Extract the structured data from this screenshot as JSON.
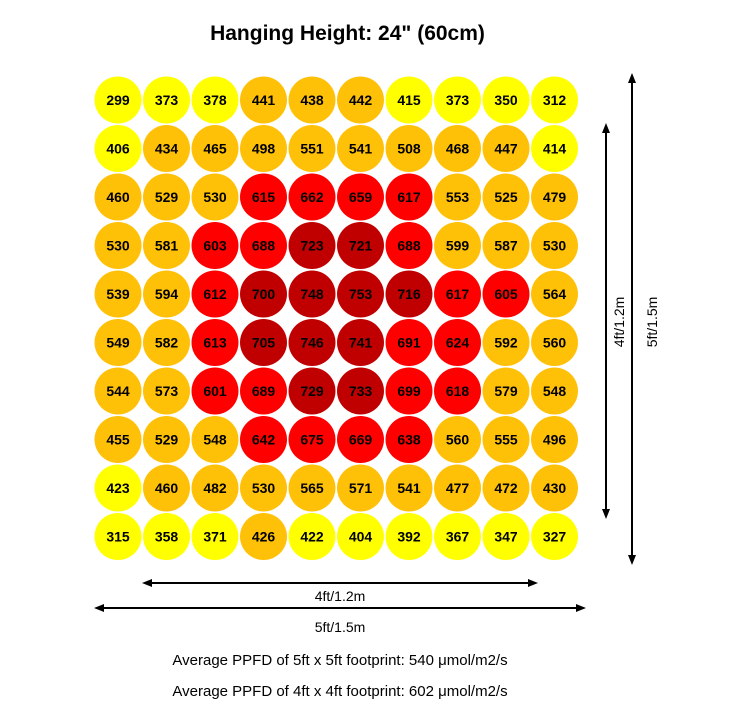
{
  "chart_data": {
    "type": "heatmap",
    "title": "Hanging Height: 24\" (60cm)",
    "rows": [
      [
        299,
        373,
        378,
        441,
        438,
        442,
        415,
        373,
        350,
        312
      ],
      [
        406,
        434,
        465,
        498,
        551,
        541,
        508,
        468,
        447,
        414
      ],
      [
        460,
        529,
        530,
        615,
        662,
        659,
        617,
        553,
        525,
        479
      ],
      [
        530,
        581,
        603,
        688,
        723,
        721,
        688,
        599,
        587,
        530
      ],
      [
        539,
        594,
        612,
        700,
        748,
        753,
        716,
        617,
        605,
        564
      ],
      [
        549,
        582,
        613,
        705,
        746,
        741,
        691,
        624,
        592,
        560
      ],
      [
        544,
        573,
        601,
        689,
        729,
        733,
        699,
        618,
        579,
        548
      ],
      [
        455,
        529,
        548,
        642,
        675,
        669,
        638,
        560,
        555,
        496
      ],
      [
        423,
        460,
        482,
        530,
        565,
        571,
        541,
        477,
        472,
        430
      ],
      [
        315,
        358,
        371,
        426,
        422,
        404,
        392,
        367,
        347,
        327
      ]
    ],
    "color_scale": [
      {
        "min": 0,
        "color": "#ffff00"
      },
      {
        "min": 425,
        "color": "#ffc107"
      },
      {
        "min": 600,
        "color": "#ff0000"
      },
      {
        "min": 700,
        "color": "#c00000"
      }
    ],
    "dimensions": {
      "inner_width": "4ft/1.2m",
      "outer_width": "5ft/1.5m",
      "inner_height": "4ft/1.2m",
      "outer_height": "5ft/1.5m"
    },
    "notes": [
      "Average PPFD of 5ft x 5ft footprint: 540 μmol/m2/s",
      "Average PPFD of 4ft x 4ft footprint: 602 μmol/m2/s"
    ]
  }
}
